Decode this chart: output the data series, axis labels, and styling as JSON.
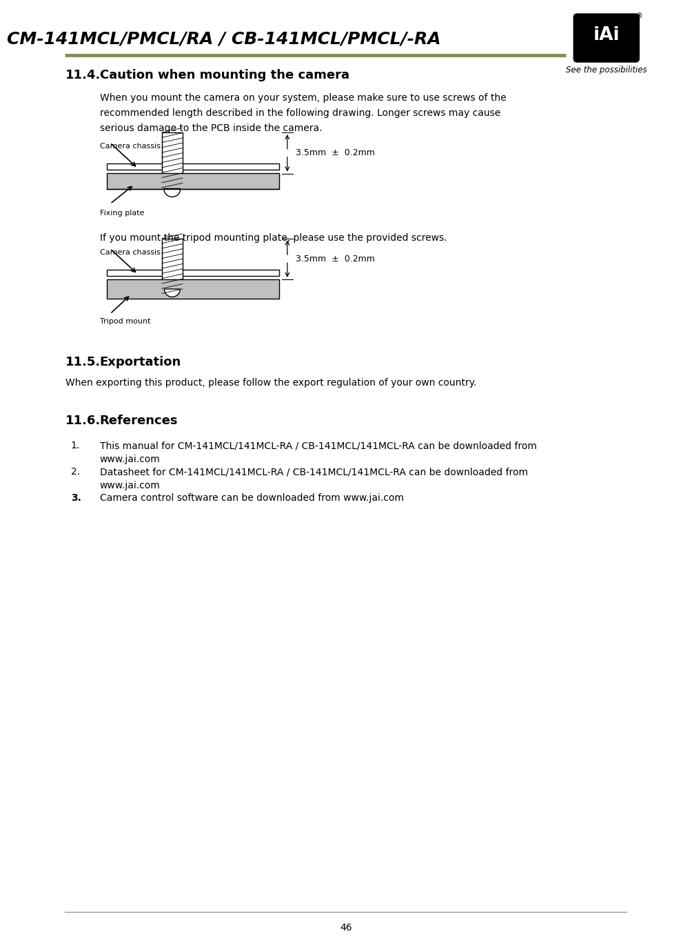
{
  "title": "CM-141MCL/PMCL/RA / CB-141MCL/PMCL/-RA",
  "title_color": "#000000",
  "header_line_color": "#8B8B4B",
  "tagline": "See the possibilities",
  "section_11_4_num": "11.4.",
  "section_11_4_bold": "Caution when mounting the camera",
  "section_11_4_body1": "When you mount the camera on your system, please make sure to use screws of the",
  "section_11_4_body2": "recommended length described in the following drawing. Longer screws may cause",
  "section_11_4_body3": "serious damage to the PCB inside the camera.",
  "label_camera_chassis_1": "Camera chassis",
  "label_fixing_plate": "Fixing plate",
  "dimension_label_1": "3.5mm  ±  0.2mm",
  "label_camera_chassis_2": "Camera chassis",
  "label_tripod_mount": "Tripod mount",
  "dimension_label_2": "3.5mm  ±  0.2mm",
  "tripod_text": "If you mount the tripod mounting plate, please use the provided screws.",
  "section_11_5_num": "11.5.",
  "section_11_5_bold": "Exportation",
  "section_11_5_body": "When exporting this product, please follow the export regulation of your own country.",
  "section_11_6_num": "11.6.",
  "section_11_6_bold": "References",
  "ref_1a": "This manual for CM-141MCL/141MCL-RA / CB-141MCL/141MCL-RA can be downloaded from",
  "ref_1b": "www.jai.com",
  "ref_2a": "Datasheet for CM-141MCL/141MCL-RA / CB-141MCL/141MCL-RA can be downloaded from",
  "ref_2b": "www.jai.com",
  "ref_3": "Camera control software can be downloaded from www.jai.com",
  "page_number": "46",
  "bg_color": "#ffffff",
  "text_color": "#000000",
  "body_font_size": 10.0,
  "heading_font_size": 13.0,
  "small_font_size": 8.0,
  "gray_color": "#C0C0C0"
}
